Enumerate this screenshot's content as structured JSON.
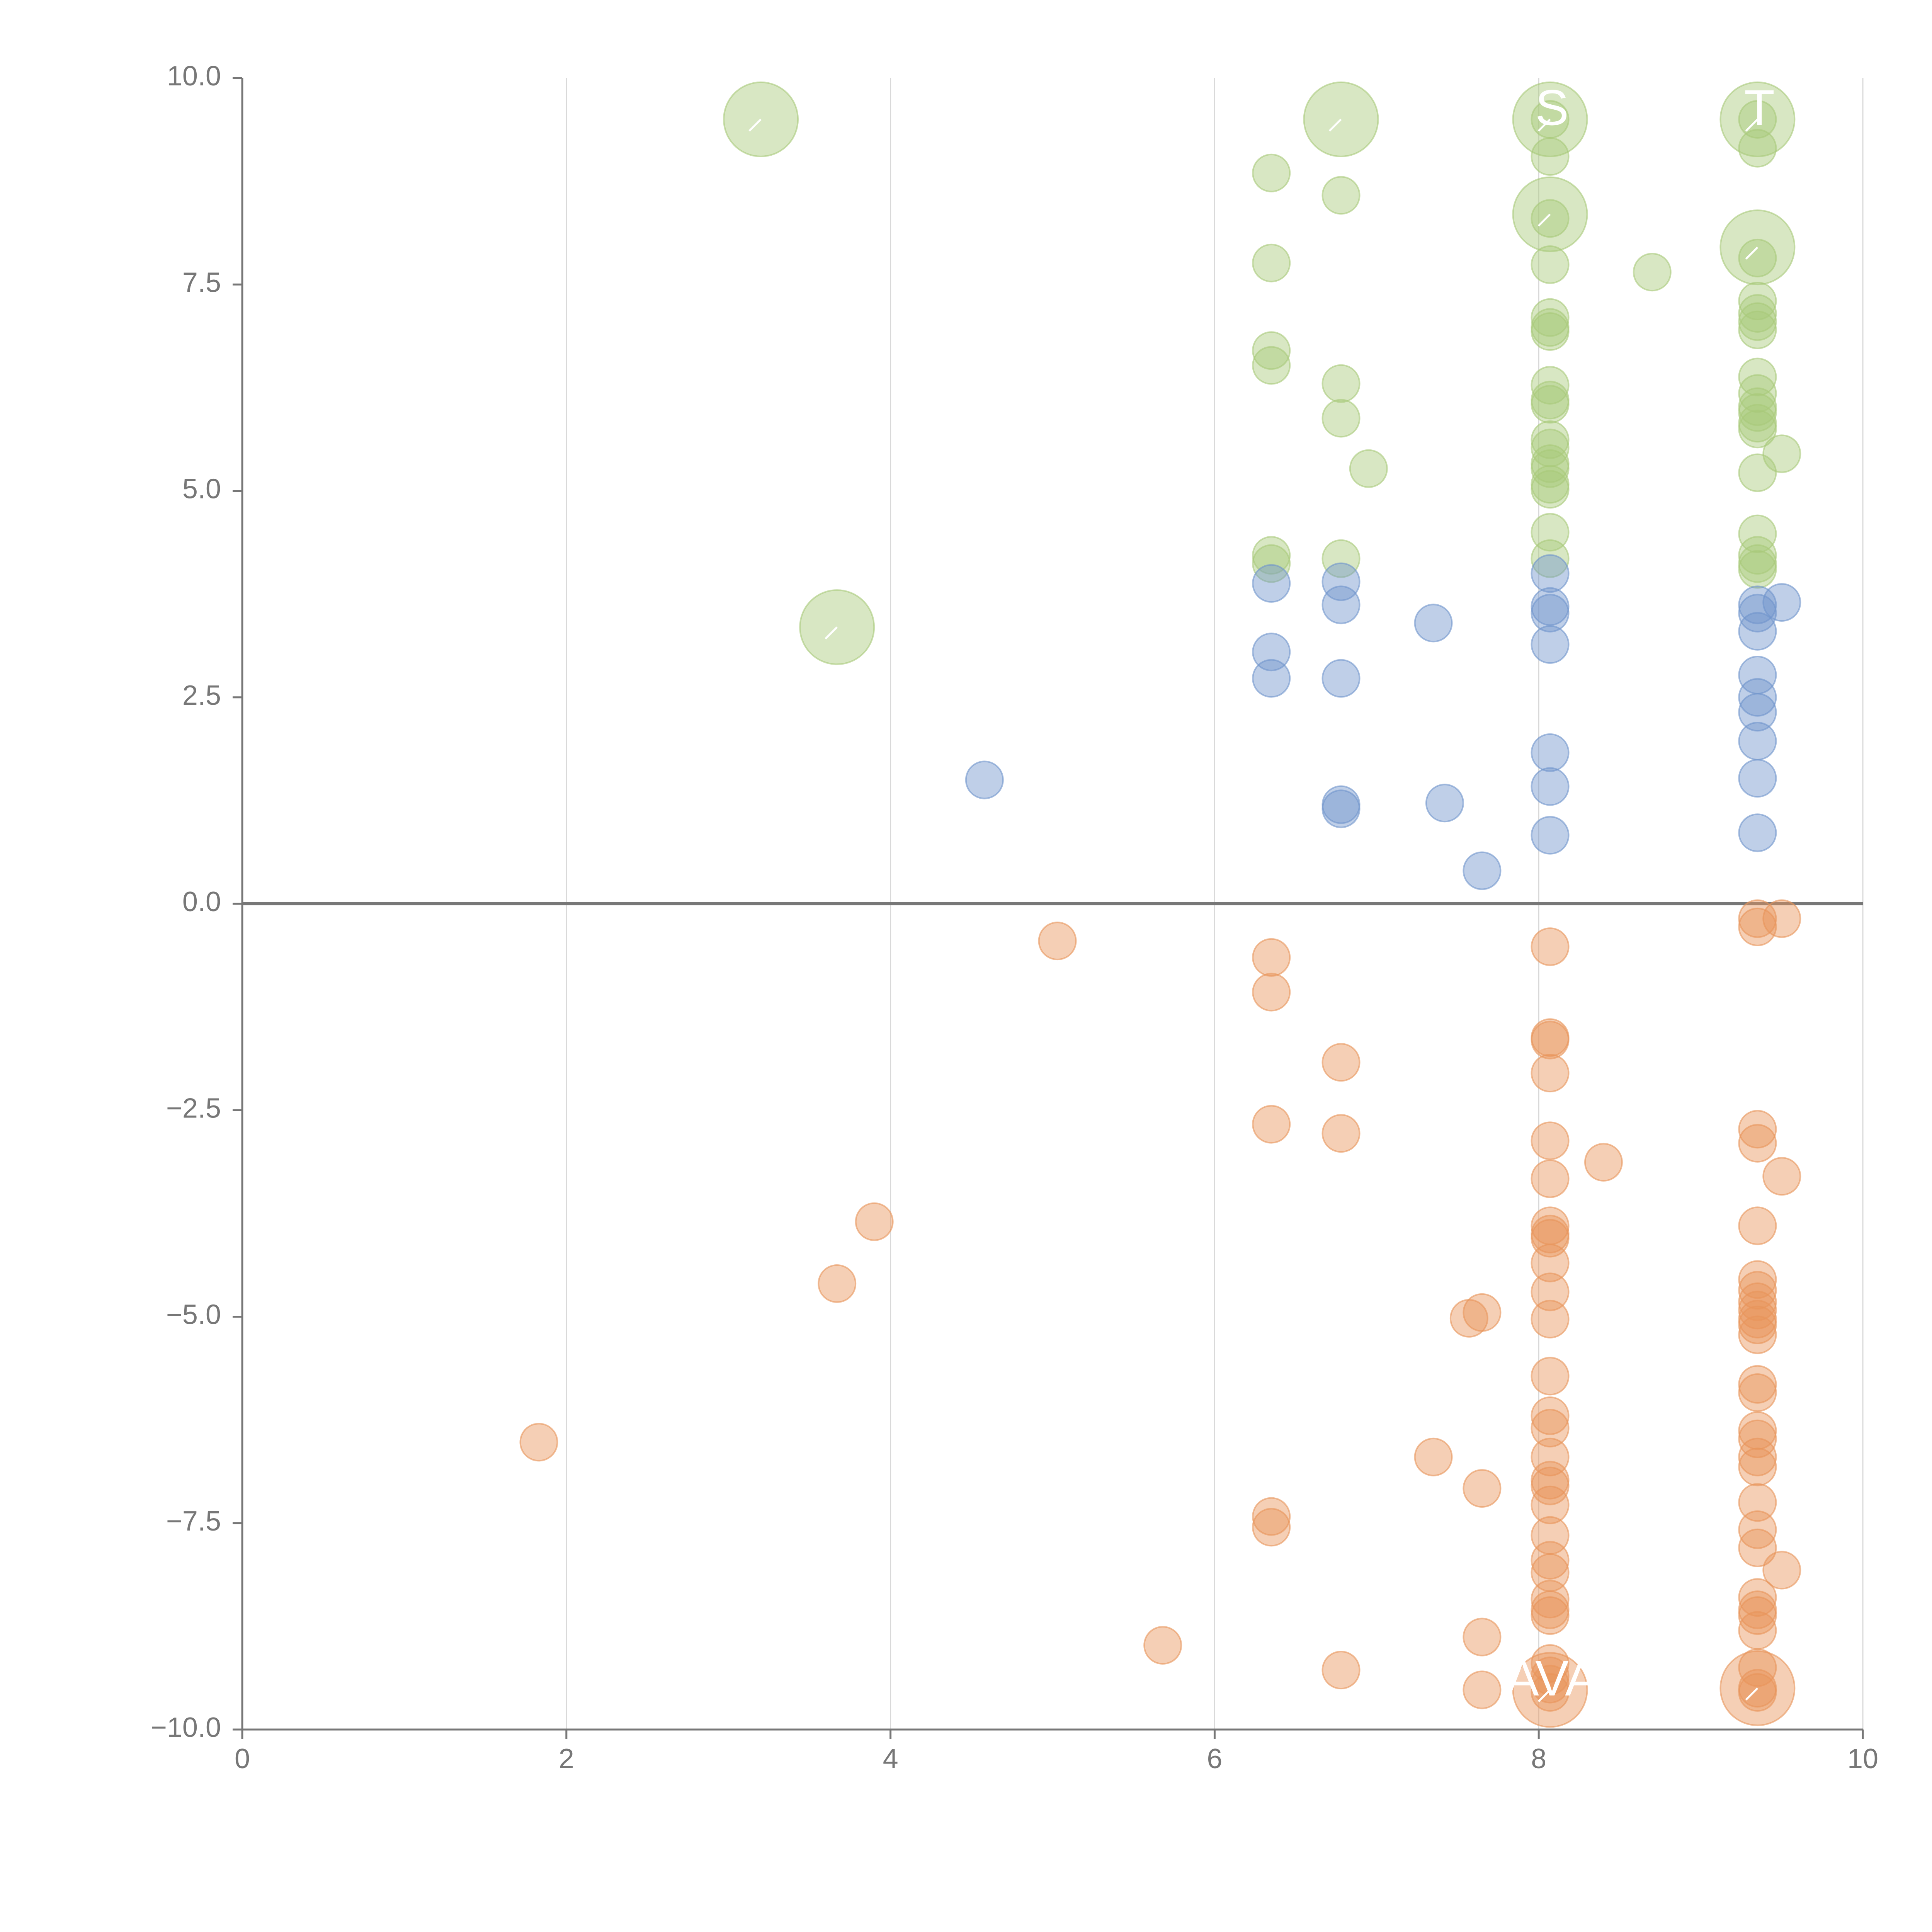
{
  "chart_data": {
    "type": "scatter",
    "title": "",
    "xlabel": "",
    "ylabel": "",
    "xlim": [
      0,
      10
    ],
    "ylim": [
      -10,
      10
    ],
    "x_ticks": [
      "0",
      "2",
      "4",
      "6",
      "8",
      "10"
    ],
    "y_ticks": [
      "10.0",
      "7.5",
      "5.0",
      "2.5",
      "0.0",
      "−2.5",
      "−5.0",
      "−7.5",
      "−10.0"
    ],
    "grid": "vertical at x ticks",
    "colors": {
      "green": "#a9c97a",
      "blue": "#7095cc",
      "orange": "#e8955a",
      "axis": "#777777"
    },
    "series": [
      {
        "name": "green",
        "color": "#a9c97a",
        "points": [
          [
            6.35,
            8.85
          ],
          [
            6.35,
            7.76
          ],
          [
            6.35,
            6.7
          ],
          [
            6.35,
            6.52
          ],
          [
            6.35,
            4.22
          ],
          [
            6.35,
            4.12
          ],
          [
            6.78,
            8.58
          ],
          [
            6.78,
            6.3
          ],
          [
            6.78,
            5.88
          ],
          [
            6.78,
            4.18
          ],
          [
            6.95,
            5.27
          ],
          [
            8.07,
            9.5
          ],
          [
            8.07,
            9.05
          ],
          [
            8.07,
            8.3
          ],
          [
            8.07,
            7.74
          ],
          [
            8.07,
            7.1
          ],
          [
            8.07,
            6.98
          ],
          [
            8.07,
            6.93
          ],
          [
            8.07,
            6.28
          ],
          [
            8.07,
            6.1
          ],
          [
            8.07,
            6.05
          ],
          [
            8.07,
            5.62
          ],
          [
            8.07,
            5.52
          ],
          [
            8.07,
            5.33
          ],
          [
            8.07,
            5.27
          ],
          [
            8.07,
            5.08
          ],
          [
            8.07,
            5.02
          ],
          [
            8.07,
            4.5
          ],
          [
            8.07,
            4.18
          ],
          [
            8.7,
            7.65
          ],
          [
            9.35,
            9.5
          ],
          [
            9.35,
            9.15
          ],
          [
            9.35,
            7.82
          ],
          [
            9.35,
            7.3
          ],
          [
            9.35,
            7.15
          ],
          [
            9.35,
            7.05
          ],
          [
            9.35,
            6.95
          ],
          [
            9.35,
            6.38
          ],
          [
            9.35,
            6.18
          ],
          [
            9.35,
            6.02
          ],
          [
            9.35,
            5.95
          ],
          [
            9.35,
            5.82
          ],
          [
            9.35,
            5.75
          ],
          [
            9.35,
            5.22
          ],
          [
            9.35,
            4.48
          ],
          [
            9.35,
            4.22
          ],
          [
            9.35,
            4.12
          ],
          [
            9.35,
            4.05
          ],
          [
            9.5,
            5.45
          ]
        ]
      },
      {
        "name": "blue",
        "color": "#7095cc",
        "points": [
          [
            4.58,
            1.5
          ],
          [
            6.35,
            3.88
          ],
          [
            6.35,
            3.05
          ],
          [
            6.35,
            2.73
          ],
          [
            6.78,
            3.9
          ],
          [
            6.78,
            3.62
          ],
          [
            6.78,
            2.73
          ],
          [
            6.78,
            1.2
          ],
          [
            6.78,
            1.15
          ],
          [
            7.35,
            3.4
          ],
          [
            7.42,
            1.22
          ],
          [
            7.65,
            0.4
          ],
          [
            8.07,
            4.0
          ],
          [
            8.07,
            3.6
          ],
          [
            8.07,
            3.52
          ],
          [
            8.07,
            3.14
          ],
          [
            8.07,
            1.83
          ],
          [
            8.07,
            1.42
          ],
          [
            8.07,
            0.83
          ],
          [
            9.35,
            3.62
          ],
          [
            9.35,
            3.52
          ],
          [
            9.35,
            3.3
          ],
          [
            9.35,
            2.77
          ],
          [
            9.35,
            2.5
          ],
          [
            9.35,
            2.32
          ],
          [
            9.35,
            1.97
          ],
          [
            9.35,
            1.52
          ],
          [
            9.35,
            0.86
          ],
          [
            9.5,
            3.65
          ]
        ]
      },
      {
        "name": "orange",
        "color": "#e8955a",
        "points": [
          [
            1.83,
            -6.52
          ],
          [
            3.67,
            -4.6
          ],
          [
            3.9,
            -3.85
          ],
          [
            5.03,
            -0.45
          ],
          [
            5.68,
            -8.98
          ],
          [
            6.35,
            -0.65
          ],
          [
            6.35,
            -1.07
          ],
          [
            6.35,
            -2.67
          ],
          [
            6.35,
            -7.42
          ],
          [
            6.35,
            -7.55
          ],
          [
            6.78,
            -1.92
          ],
          [
            6.78,
            -2.78
          ],
          [
            6.78,
            -9.28
          ],
          [
            7.35,
            -6.7
          ],
          [
            7.57,
            -5.02
          ],
          [
            7.65,
            -4.95
          ],
          [
            7.65,
            -7.08
          ],
          [
            7.65,
            -8.88
          ],
          [
            7.65,
            -9.52
          ],
          [
            8.07,
            -0.52
          ],
          [
            8.07,
            -1.62
          ],
          [
            8.07,
            -1.65
          ],
          [
            8.07,
            -2.05
          ],
          [
            8.07,
            -2.87
          ],
          [
            8.07,
            -3.33
          ],
          [
            8.07,
            -3.9
          ],
          [
            8.07,
            -4.0
          ],
          [
            8.07,
            -4.05
          ],
          [
            8.07,
            -4.35
          ],
          [
            8.07,
            -4.7
          ],
          [
            8.07,
            -5.03
          ],
          [
            8.07,
            -5.72
          ],
          [
            8.07,
            -6.2
          ],
          [
            8.07,
            -6.35
          ],
          [
            8.07,
            -6.7
          ],
          [
            8.07,
            -6.98
          ],
          [
            8.07,
            -7.05
          ],
          [
            8.07,
            -7.28
          ],
          [
            8.07,
            -7.65
          ],
          [
            8.07,
            -7.95
          ],
          [
            8.07,
            -8.1
          ],
          [
            8.07,
            -8.42
          ],
          [
            8.07,
            -8.55
          ],
          [
            8.07,
            -8.62
          ],
          [
            8.07,
            -9.2
          ],
          [
            8.07,
            -9.35
          ],
          [
            8.07,
            -9.45
          ],
          [
            8.07,
            -9.55
          ],
          [
            8.4,
            -3.13
          ],
          [
            9.35,
            -0.18
          ],
          [
            9.35,
            -0.28
          ],
          [
            9.35,
            -2.73
          ],
          [
            9.35,
            -2.9
          ],
          [
            9.35,
            -3.9
          ],
          [
            9.35,
            -4.55
          ],
          [
            9.35,
            -4.68
          ],
          [
            9.35,
            -4.82
          ],
          [
            9.35,
            -4.92
          ],
          [
            9.35,
            -5.03
          ],
          [
            9.35,
            -5.1
          ],
          [
            9.35,
            -5.22
          ],
          [
            9.35,
            -5.82
          ],
          [
            9.35,
            -5.92
          ],
          [
            9.35,
            -6.38
          ],
          [
            9.35,
            -6.48
          ],
          [
            9.35,
            -6.7
          ],
          [
            9.35,
            -6.82
          ],
          [
            9.35,
            -7.25
          ],
          [
            9.35,
            -7.58
          ],
          [
            9.35,
            -7.8
          ],
          [
            9.35,
            -8.4
          ],
          [
            9.35,
            -8.55
          ],
          [
            9.35,
            -8.62
          ],
          [
            9.35,
            -8.8
          ],
          [
            9.35,
            -9.25
          ],
          [
            9.35,
            -9.5
          ],
          [
            9.35,
            -9.55
          ],
          [
            9.5,
            -0.18
          ],
          [
            9.5,
            -3.3
          ],
          [
            9.5,
            -8.07
          ]
        ]
      }
    ],
    "highlights": [
      {
        "series": "green",
        "x": 3.2,
        "y": 9.5,
        "label": "",
        "scale": 2.0
      },
      {
        "series": "green",
        "x": 3.67,
        "y": 3.35,
        "label": "",
        "scale": 2.0
      },
      {
        "series": "green",
        "x": 6.78,
        "y": 9.5,
        "label": "",
        "scale": 2.0
      },
      {
        "series": "green",
        "x": 8.07,
        "y": 9.5,
        "label": "S",
        "scale": 2.0
      },
      {
        "series": "green",
        "x": 8.07,
        "y": 8.35,
        "label": "",
        "scale": 2.0
      },
      {
        "series": "green",
        "x": 9.35,
        "y": 9.5,
        "label": "T",
        "scale": 2.0
      },
      {
        "series": "green",
        "x": 9.35,
        "y": 7.95,
        "label": "",
        "scale": 2.0
      },
      {
        "series": "orange",
        "x": 8.07,
        "y": -9.52,
        "label": "AVA",
        "scale": 2.0
      },
      {
        "series": "orange",
        "x": 9.35,
        "y": -9.5,
        "label": "",
        "scale": 2.0
      }
    ]
  }
}
